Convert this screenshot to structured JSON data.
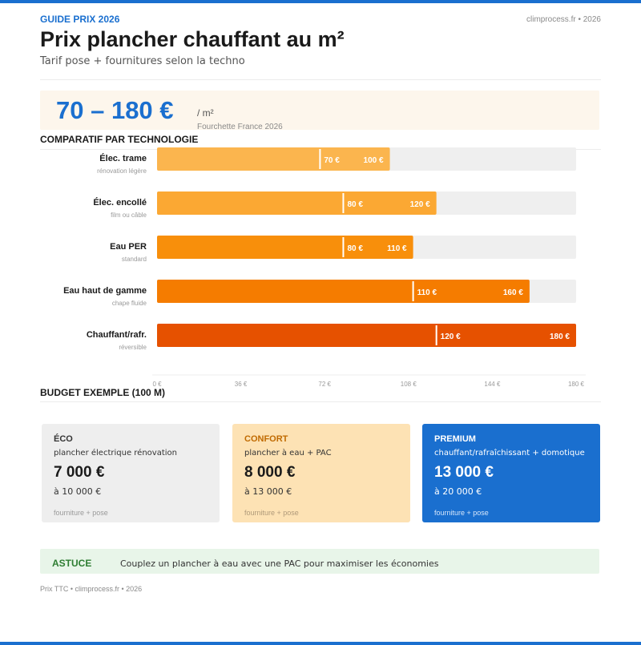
{
  "header": {
    "kicker": "GUIDE PRIX 2026",
    "source": "climprocess.fr • 2026",
    "title": "Prix plancher chauffant au m²",
    "subtitle": "Tarif pose + fournitures selon la techno"
  },
  "hero": {
    "range": "70 – 180 €",
    "unit": "/ m²",
    "note": "Fourchette France 2026"
  },
  "colors": {
    "accent": "#1a6fcf",
    "bar_track": "#efefef",
    "bars": [
      "#fbb54e",
      "#fba833",
      "#f88f0b",
      "#f57c00",
      "#e65100"
    ]
  },
  "chart_data": {
    "type": "bar",
    "orientation": "horizontal",
    "range_bars": true,
    "title": "COMPARATIF PAR TECHNOLOGIE",
    "xlim": [
      0,
      180
    ],
    "x_ticks": [
      "0 €",
      "36 €",
      "72 €",
      "108 €",
      "144 €",
      "180 €"
    ],
    "categories": [
      {
        "name": "Élec. trame",
        "sub": "rénovation légère",
        "min": 70,
        "max": 100,
        "min_label": "70 €",
        "max_label": "100 €"
      },
      {
        "name": "Élec. encollé",
        "sub": "film ou câble",
        "min": 80,
        "max": 120,
        "min_label": "80 €",
        "max_label": "120 €"
      },
      {
        "name": "Eau PER",
        "sub": "standard",
        "min": 80,
        "max": 110,
        "min_label": "80 €",
        "max_label": "110 €"
      },
      {
        "name": "Eau haut de gamme",
        "sub": "chape fluide",
        "min": 110,
        "max": 160,
        "min_label": "110 €",
        "max_label": "160 €"
      },
      {
        "name": "Chauffant/rafr.",
        "sub": "réversible",
        "min": 120,
        "max": 180,
        "min_label": "120 €",
        "max_label": "180 €"
      }
    ]
  },
  "budget": {
    "title": "BUDGET EXEMPLE (100 M)",
    "cards": [
      {
        "tag": "ÉCO",
        "desc": "plancher électrique rénovation",
        "price": "7 000 €",
        "upto": "à 10 000 €",
        "foot": "fourniture + pose"
      },
      {
        "tag": "CONFORT",
        "desc": "plancher à eau + PAC",
        "price": "8 000 €",
        "upto": "à 13 000 €",
        "foot": "fourniture + pose"
      },
      {
        "tag": "PREMIUM",
        "desc": "chauffant/rafraîchissant + domotique",
        "price": "13 000 €",
        "upto": "à 20 000 €",
        "foot": "fourniture + pose"
      }
    ]
  },
  "tip": {
    "label": "ASTUCE",
    "text": "Couplez un plancher à eau avec une PAC pour maximiser les économies"
  },
  "footer": "Prix TTC • climprocess.fr • 2026"
}
